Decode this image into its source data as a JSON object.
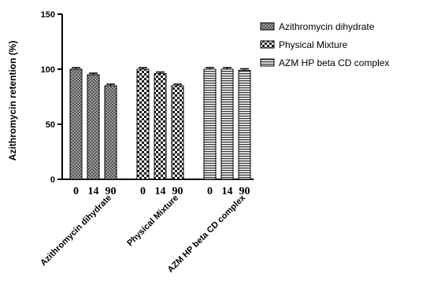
{
  "chart_data": {
    "type": "bar",
    "ylabel": "Azithromycin retention (%)",
    "ylim": [
      0,
      150
    ],
    "yticks": [
      "0",
      "50",
      "100",
      "150"
    ],
    "x_tick_labels": [
      "0",
      "14",
      "90"
    ],
    "groups": [
      "Azithromycin dihydrate",
      "Physical Mixture",
      "AZM HP beta CD complex"
    ],
    "series": [
      {
        "name": "Azithromycin dihydrate",
        "values": [
          100,
          95,
          85
        ]
      },
      {
        "name": "Physical Mixture",
        "values": [
          100,
          96,
          85
        ]
      },
      {
        "name": "AZM HP beta CD complex",
        "values": [
          100,
          100,
          99
        ]
      }
    ],
    "legend_position": "top-right",
    "grid": false,
    "error_bars": true
  },
  "legend": {
    "items": [
      {
        "label": "Azithromycin dihydrate",
        "pattern": "crosshatch-dense"
      },
      {
        "label": "Physical Mixture",
        "pattern": "checker"
      },
      {
        "label": "AZM HP beta CD complex",
        "pattern": "horizontal-lines"
      }
    ]
  }
}
